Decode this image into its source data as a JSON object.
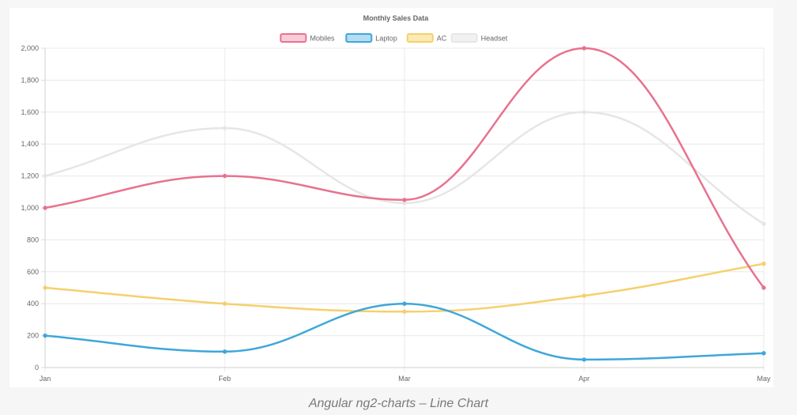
{
  "caption": "Angular ng2-charts – Line Chart",
  "chart_data": {
    "type": "line",
    "title": "Monthly Sales Data",
    "categories": [
      "Jan",
      "Feb",
      "Mar",
      "Apr",
      "May"
    ],
    "ylim": [
      0,
      2000
    ],
    "yticks": [
      0,
      200,
      400,
      600,
      800,
      1000,
      1200,
      1400,
      1600,
      1800,
      2000
    ],
    "ytick_labels": [
      "0",
      "200",
      "400",
      "600",
      "800",
      "1,000",
      "1,200",
      "1,400",
      "1,600",
      "1,800",
      "2,000"
    ],
    "grid": true,
    "legend_position": "top",
    "series": [
      {
        "name": "Mobiles",
        "values": [
          1000,
          1200,
          1050,
          2000,
          500
        ],
        "color": "#e8728f",
        "fill": "#f9cdd8"
      },
      {
        "name": "Laptop",
        "values": [
          200,
          100,
          400,
          50,
          90
        ],
        "color": "#3ea7d8",
        "fill": "#b5dcf2"
      },
      {
        "name": "AC",
        "values": [
          500,
          400,
          350,
          450,
          650
        ],
        "color": "#f5d06c",
        "fill": "#fbeab3"
      },
      {
        "name": "Headset",
        "values": [
          1200,
          1500,
          1030,
          1600,
          900
        ],
        "color": "#e6e6e6",
        "fill": "#f1f1f1"
      }
    ]
  }
}
